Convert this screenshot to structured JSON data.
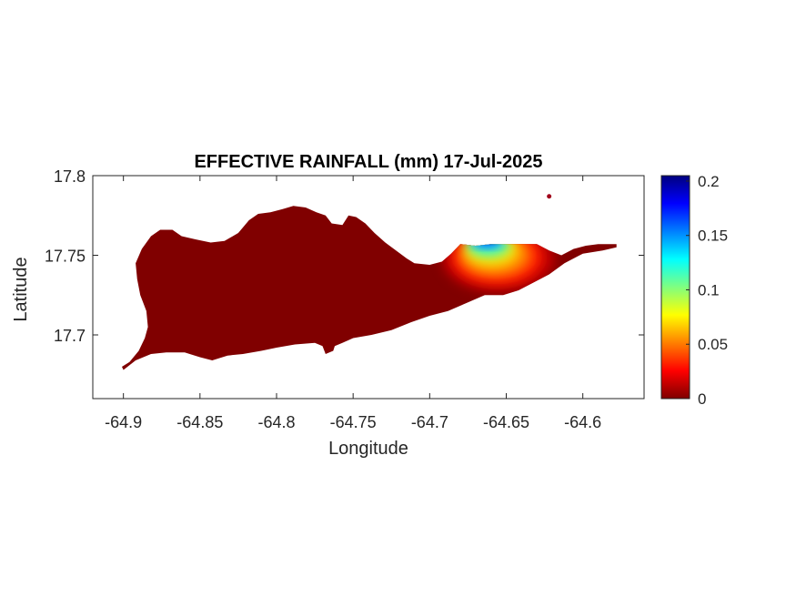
{
  "chart_data": {
    "type": "heatmap",
    "title": "EFFECTIVE RAINFALL (mm) 17-Jul-2025",
    "xlabel": "Longitude",
    "ylabel": "Latitude",
    "xlim": [
      -64.92,
      -64.56
    ],
    "ylim": [
      17.66,
      17.8
    ],
    "xticks": [
      -64.9,
      -64.85,
      -64.8,
      -64.75,
      -64.7,
      -64.65,
      -64.6
    ],
    "xtick_labels": [
      "-64.9",
      "-64.85",
      "-64.8",
      "-64.75",
      "-64.7",
      "-64.65",
      "-64.6"
    ],
    "yticks": [
      17.7,
      17.75,
      17.8
    ],
    "ytick_labels": [
      "17.7",
      "17.75",
      "17.8"
    ],
    "colorbar": {
      "colormap": "jet",
      "min": 0,
      "max": 0.205,
      "ticks": [
        0,
        0.05,
        0.1,
        0.15,
        0.2
      ],
      "tick_labels": [
        "0",
        "0.05",
        "0.1",
        "0.15",
        "0.2"
      ]
    },
    "field": {
      "background_value": 0,
      "hotspot_center": [
        -64.655,
        17.75
      ],
      "hotspot_peak": 0.205,
      "peak_location": [
        -64.658,
        17.755
      ],
      "note_values": "0 mm over nearly the whole island; localized rainfall up to about 0.2 mm near longitude -64.66, latitude 17.75"
    },
    "island_outline": [
      [
        -64.901,
        17.68
      ],
      [
        -64.896,
        17.683
      ],
      [
        -64.89,
        17.69
      ],
      [
        -64.886,
        17.698
      ],
      [
        -64.884,
        17.705
      ],
      [
        -64.885,
        17.715
      ],
      [
        -64.889,
        17.725
      ],
      [
        -64.891,
        17.735
      ],
      [
        -64.892,
        17.745
      ],
      [
        -64.888,
        17.754
      ],
      [
        -64.882,
        17.762
      ],
      [
        -64.876,
        17.766
      ],
      [
        -64.868,
        17.766
      ],
      [
        -64.862,
        17.762
      ],
      [
        -64.853,
        17.76
      ],
      [
        -64.843,
        17.758
      ],
      [
        -64.834,
        17.759
      ],
      [
        -64.825,
        17.764
      ],
      [
        -64.818,
        17.772
      ],
      [
        -64.812,
        17.776
      ],
      [
        -64.804,
        17.777
      ],
      [
        -64.796,
        17.779
      ],
      [
        -64.789,
        17.781
      ],
      [
        -64.781,
        17.78
      ],
      [
        -64.774,
        17.777
      ],
      [
        -64.768,
        17.775
      ],
      [
        -64.764,
        17.77
      ],
      [
        -64.757,
        17.769
      ],
      [
        -64.753,
        17.775
      ],
      [
        -64.748,
        17.774
      ],
      [
        -64.742,
        17.77
      ],
      [
        -64.736,
        17.764
      ],
      [
        -64.729,
        17.758
      ],
      [
        -64.722,
        17.753
      ],
      [
        -64.715,
        17.748
      ],
      [
        -64.71,
        17.745
      ],
      [
        -64.7,
        17.744
      ],
      [
        -64.692,
        17.746
      ],
      [
        -64.686,
        17.751
      ],
      [
        -64.68,
        17.757
      ],
      [
        -64.67,
        17.756
      ],
      [
        -64.66,
        17.757
      ],
      [
        -64.652,
        17.757
      ],
      [
        -64.64,
        17.757
      ],
      [
        -64.63,
        17.757
      ],
      [
        -64.622,
        17.753
      ],
      [
        -64.614,
        17.75
      ],
      [
        -64.606,
        17.754
      ],
      [
        -64.598,
        17.756
      ],
      [
        -64.59,
        17.757
      ],
      [
        -64.578,
        17.757
      ],
      [
        -64.578,
        17.755
      ],
      [
        -64.587,
        17.753
      ],
      [
        -64.6,
        17.751
      ],
      [
        -64.612,
        17.745
      ],
      [
        -64.622,
        17.738
      ],
      [
        -64.632,
        17.733
      ],
      [
        -64.642,
        17.728
      ],
      [
        -64.652,
        17.725
      ],
      [
        -64.664,
        17.725
      ],
      [
        -64.676,
        17.72
      ],
      [
        -64.688,
        17.715
      ],
      [
        -64.7,
        17.712
      ],
      [
        -64.712,
        17.708
      ],
      [
        -64.725,
        17.703
      ],
      [
        -64.738,
        17.7
      ],
      [
        -64.75,
        17.698
      ],
      [
        -64.757,
        17.695
      ],
      [
        -64.762,
        17.693
      ],
      [
        -64.763,
        17.69
      ],
      [
        -64.768,
        17.688
      ],
      [
        -64.77,
        17.693
      ],
      [
        -64.775,
        17.695
      ],
      [
        -64.788,
        17.694
      ],
      [
        -64.8,
        17.692
      ],
      [
        -64.81,
        17.69
      ],
      [
        -64.822,
        17.688
      ],
      [
        -64.832,
        17.687
      ],
      [
        -64.842,
        17.684
      ],
      [
        -64.85,
        17.686
      ],
      [
        -64.86,
        17.689
      ],
      [
        -64.872,
        17.689
      ],
      [
        -64.882,
        17.688
      ],
      [
        -64.892,
        17.684
      ],
      [
        -64.9,
        17.678
      ]
    ],
    "islet": [
      -64.622,
      17.787
    ]
  }
}
